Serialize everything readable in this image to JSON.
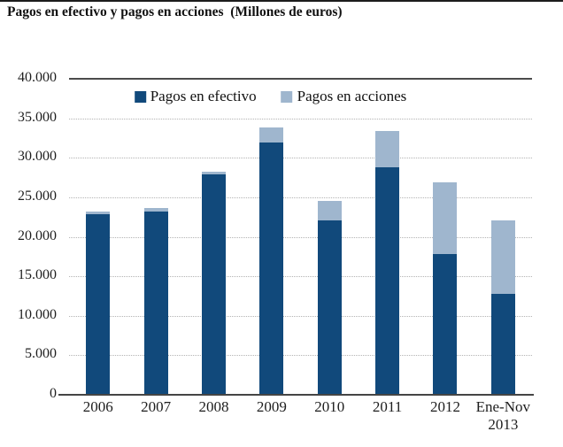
{
  "header": {
    "title": "Pagos en efectivo y pagos en acciones  (Millones de euros)"
  },
  "chart_data": {
    "type": "bar",
    "stacked": true,
    "title": "Pagos en efectivo y pagos en acciones (Millones de euros)",
    "units": "Millones de euros",
    "categories": [
      "2006",
      "2007",
      "2008",
      "2009",
      "2010",
      "2011",
      "2012",
      "Ene-Nov\n2013"
    ],
    "series": [
      {
        "name": "Pagos en efectivo",
        "color": "#11497b",
        "values": [
          23000,
          23300,
          28000,
          32100,
          22200,
          28900,
          17900,
          12900
        ]
      },
      {
        "name": "Pagos en acciones",
        "color": "#9fb6ce",
        "values": [
          300,
          500,
          400,
          1900,
          2400,
          4600,
          9100,
          9300
        ]
      }
    ],
    "totals": [
      23300,
      23800,
      28400,
      34000,
      24600,
      33500,
      27000,
      22200
    ],
    "xlabel": "",
    "ylabel": "",
    "ylim": [
      0,
      40000
    ],
    "ytick_step": 5000,
    "ytick_labels": [
      "0",
      "5.000",
      "10.000",
      "15.000",
      "20.000",
      "25.000",
      "30.000",
      "35.000",
      "40.000"
    ],
    "grid": "horizontal-dotted",
    "legend_position": "top-inside"
  },
  "colors": {
    "series_cash": "#11497b",
    "series_shares": "#9fb6ce",
    "axis_line": "#454545",
    "top_rule": "#1c1c1c",
    "gridline": "#b3b3b3",
    "text": "#1e1e1e"
  }
}
